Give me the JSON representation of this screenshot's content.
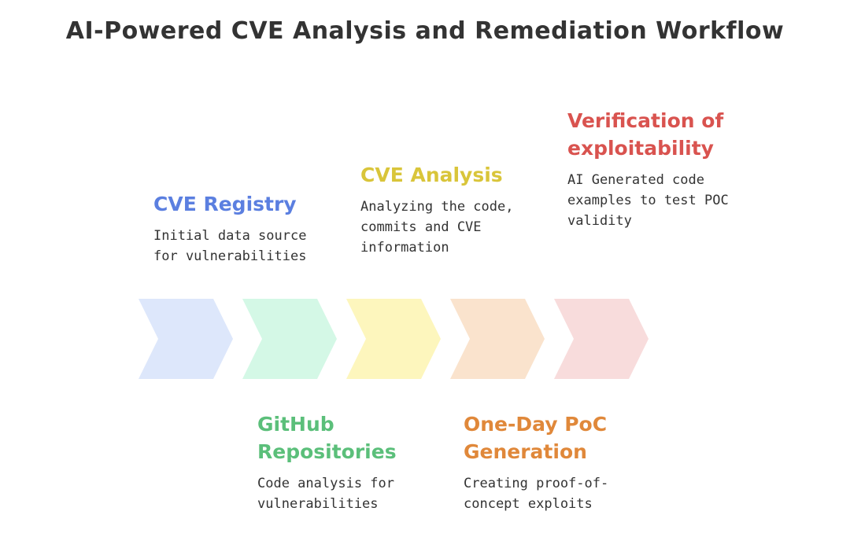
{
  "title": "AI-Powered CVE Analysis and Remediation Workflow",
  "steps": [
    {
      "title": "CVE Registry",
      "description": "Initial data source for vulnerabilities",
      "color": "#5b7fe0",
      "fill": "#dde7fb"
    },
    {
      "title": "GitHub Repositories",
      "description": "Code analysis for vulnerabilities",
      "color": "#5bbf7a",
      "fill": "#d4f8e6"
    },
    {
      "title": "CVE Analysis",
      "description": "Analyzing the code, commits and CVE information",
      "color": "#d9c53a",
      "fill": "#fdf6bd"
    },
    {
      "title": "One-Day PoC Generation",
      "description": "Creating proof-of-concept exploits",
      "color": "#e0883a",
      "fill": "#fae3cd"
    },
    {
      "title": "Verification of exploitability",
      "description": "AI Generated code examples to test POC validity",
      "color": "#d9534f",
      "fill": "#f8dcdc"
    }
  ]
}
